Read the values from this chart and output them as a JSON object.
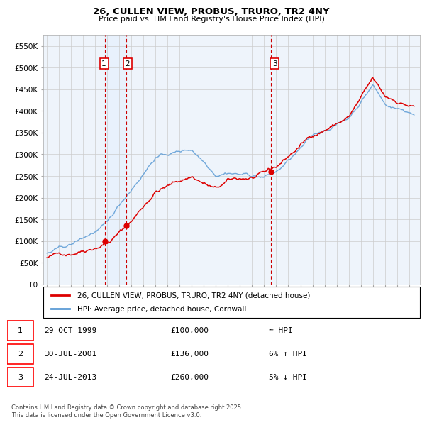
{
  "title_line1": "26, CULLEN VIEW, PROBUS, TRURO, TR2 4NY",
  "title_line2": "Price paid vs. HM Land Registry's House Price Index (HPI)",
  "ylim": [
    0,
    575000
  ],
  "yticks": [
    0,
    50000,
    100000,
    150000,
    200000,
    250000,
    300000,
    350000,
    400000,
    450000,
    500000,
    550000
  ],
  "ytick_labels": [
    "£0",
    "£50K",
    "£100K",
    "£150K",
    "£200K",
    "£250K",
    "£300K",
    "£350K",
    "£400K",
    "£450K",
    "£500K",
    "£550K"
  ],
  "sale_dates_float": [
    1999.831,
    2001.579,
    2013.556
  ],
  "sale_prices": [
    100000,
    136000,
    260000
  ],
  "sale_labels": [
    "1",
    "2",
    "3"
  ],
  "legend_house_label": "26, CULLEN VIEW, PROBUS, TRURO, TR2 4NY (detached house)",
  "legend_hpi_label": "HPI: Average price, detached house, Cornwall",
  "table_rows": [
    [
      "1",
      "29-OCT-1999",
      "£100,000",
      "≈ HPI"
    ],
    [
      "2",
      "30-JUL-2001",
      "£136,000",
      "6% ↑ HPI"
    ],
    [
      "3",
      "24-JUL-2013",
      "£260,000",
      "5% ↓ HPI"
    ]
  ],
  "footnote": "Contains HM Land Registry data © Crown copyright and database right 2025.\nThis data is licensed under the Open Government Licence v3.0.",
  "house_color": "#dd0000",
  "hpi_color": "#92b8d8",
  "hpi_line_color": "#5b9bd5",
  "vline_color": "#cc0000",
  "shade_color": "#ddeeff",
  "grid_color": "#cccccc",
  "bg_color": "#ffffff",
  "plot_bg_color": "#eef4fb",
  "label_box_color": "#dd0000",
  "xlim_left": 1994.7,
  "xlim_right": 2025.9
}
